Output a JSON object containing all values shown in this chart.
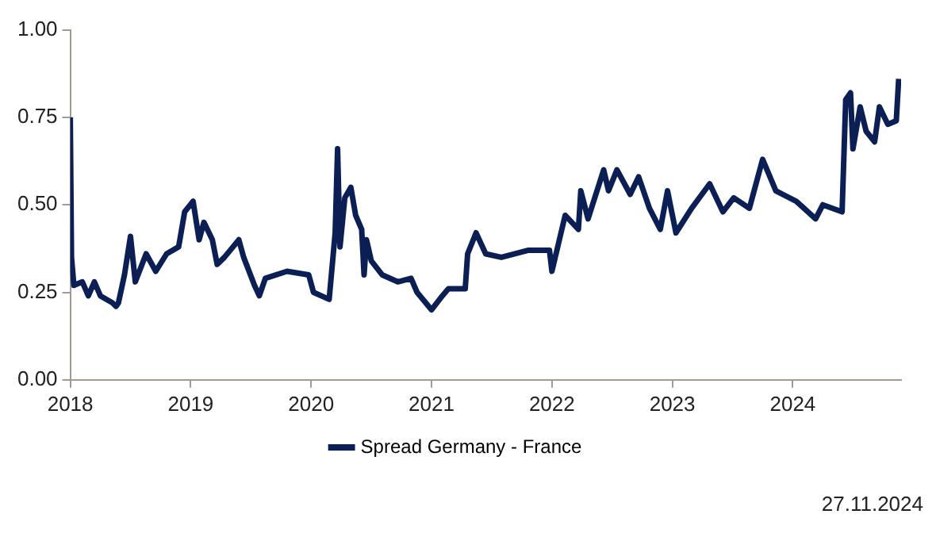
{
  "chart_data": {
    "type": "line",
    "x": [
      2018.0,
      2018.01,
      2018.03,
      2018.1,
      2018.15,
      2018.2,
      2018.25,
      2018.35,
      2018.38,
      2018.4,
      2018.45,
      2018.5,
      2018.54,
      2018.63,
      2018.71,
      2018.8,
      2018.9,
      2018.95,
      2019.02,
      2019.07,
      2019.11,
      2019.18,
      2019.22,
      2019.28,
      2019.4,
      2019.44,
      2019.53,
      2019.57,
      2019.62,
      2019.8,
      2019.98,
      2020.02,
      2020.15,
      2020.2,
      2020.22,
      2020.24,
      2020.28,
      2020.33,
      2020.37,
      2020.42,
      2020.44,
      2020.46,
      2020.5,
      2020.59,
      2020.72,
      2020.83,
      2020.88,
      2021.0,
      2021.09,
      2021.14,
      2021.25,
      2021.28,
      2021.3,
      2021.37,
      2021.45,
      2021.58,
      2021.8,
      2021.98,
      2022.0,
      2022.11,
      2022.22,
      2022.24,
      2022.3,
      2022.43,
      2022.47,
      2022.54,
      2022.65,
      2022.72,
      2022.81,
      2022.9,
      2022.96,
      2023.03,
      2023.16,
      2023.31,
      2023.42,
      2023.51,
      2023.64,
      2023.75,
      2023.86,
      2024.03,
      2024.19,
      2024.25,
      2024.41,
      2024.44,
      2024.48,
      2024.5,
      2024.56,
      2024.61,
      2024.68,
      2024.72,
      2024.79,
      2024.86,
      2024.88
    ],
    "series": [
      {
        "name": "Spread Germany - France",
        "color": "#0c1f55",
        "values": [
          0.75,
          0.35,
          0.27,
          0.28,
          0.24,
          0.28,
          0.24,
          0.22,
          0.21,
          0.22,
          0.3,
          0.41,
          0.28,
          0.36,
          0.31,
          0.36,
          0.38,
          0.48,
          0.51,
          0.4,
          0.45,
          0.4,
          0.33,
          0.35,
          0.4,
          0.35,
          0.27,
          0.24,
          0.29,
          0.31,
          0.3,
          0.25,
          0.23,
          0.42,
          0.66,
          0.38,
          0.52,
          0.55,
          0.47,
          0.43,
          0.3,
          0.4,
          0.34,
          0.3,
          0.28,
          0.29,
          0.25,
          0.2,
          0.24,
          0.26,
          0.26,
          0.26,
          0.36,
          0.42,
          0.36,
          0.35,
          0.37,
          0.37,
          0.31,
          0.47,
          0.43,
          0.54,
          0.46,
          0.6,
          0.54,
          0.6,
          0.53,
          0.58,
          0.49,
          0.43,
          0.54,
          0.42,
          0.49,
          0.56,
          0.48,
          0.52,
          0.49,
          0.63,
          0.54,
          0.51,
          0.46,
          0.5,
          0.48,
          0.8,
          0.82,
          0.66,
          0.78,
          0.71,
          0.68,
          0.78,
          0.73,
          0.74,
          0.86
        ]
      }
    ],
    "xlim": [
      2018,
      2024.9
    ],
    "xticks": [
      2018,
      2019,
      2020,
      2021,
      2022,
      2023,
      2024
    ],
    "ylim": [
      0,
      1
    ],
    "yticks": [
      {
        "value": 0,
        "label": "0.00"
      },
      {
        "value": 0.25,
        "label": "0.25"
      },
      {
        "value": 0.5,
        "label": "0.50"
      },
      {
        "value": 0.75,
        "label": "0.75"
      },
      {
        "value": 1,
        "label": "1.00"
      }
    ],
    "grid": false,
    "legend": "bottom",
    "marker": "none",
    "line_style": "solid",
    "annotations": [
      "27.11.2024"
    ]
  }
}
